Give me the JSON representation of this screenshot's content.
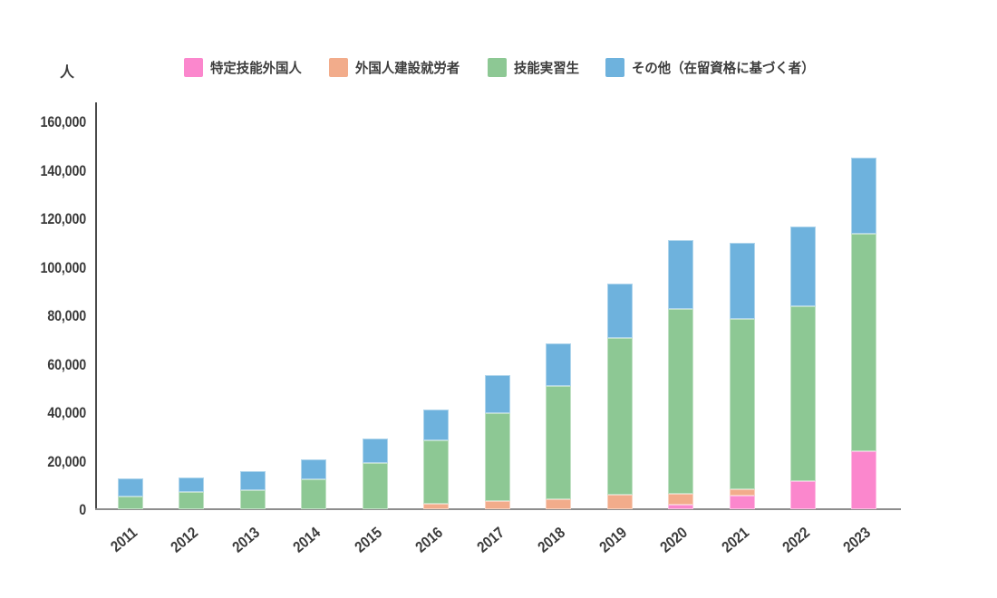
{
  "unit_label": "人",
  "colors": {
    "pink": "#FB87CD",
    "orange": "#F2AC8B",
    "green": "#8DC894",
    "blue": "#6EB2DD",
    "axis_line": "#4a4a4a",
    "baseline": "#8d8d8d",
    "text": "#3b3b3b"
  },
  "legend": [
    {
      "label": "特定技能外国人",
      "color": "#FB87CD"
    },
    {
      "label": "外国人建設就労者",
      "color": "#F2AC8B"
    },
    {
      "label": "技能実習生",
      "color": "#8DC894"
    },
    {
      "label": "その他（在留資格に基づく者）",
      "color": "#6EB2DD"
    }
  ],
  "chart_data": {
    "type": "bar",
    "stacked": true,
    "title": "",
    "xlabel": "",
    "ylabel": "人",
    "legend_position": "top",
    "grid": false,
    "ylim": [
      0,
      160000
    ],
    "ytick_labels": [
      "0",
      "20,000",
      "40,000",
      "60,000",
      "80,000",
      "100,000",
      "120,000",
      "140,000",
      "160,000"
    ],
    "ytick_values": [
      0,
      20000,
      40000,
      60000,
      80000,
      100000,
      120000,
      140000,
      160000
    ],
    "categories": [
      "2011",
      "2012",
      "2013",
      "2014",
      "2015",
      "2016",
      "2017",
      "2018",
      "2019",
      "2020",
      "2021",
      "2022",
      "2023"
    ],
    "series": [
      {
        "name": "特定技能外国人",
        "color": "#FB87CD",
        "values": [
          0,
          0,
          0,
          0,
          0,
          0,
          0,
          0,
          0,
          1800,
          5500,
          11500,
          23900
        ]
      },
      {
        "name": "外国人建設就労者",
        "color": "#F2AC8B",
        "values": [
          0,
          0,
          0,
          0,
          0,
          2100,
          3300,
          4200,
          5900,
          4500,
          2900,
          0,
          0
        ]
      },
      {
        "name": "技能実習生",
        "color": "#8DC894",
        "values": [
          5200,
          7000,
          7900,
          12300,
          19200,
          26400,
          36400,
          46600,
          64600,
          76300,
          70200,
          72400,
          89700
        ]
      },
      {
        "name": "その他（在留資格に基づく者）",
        "color": "#6EB2DD",
        "values": [
          7600,
          6100,
          7750,
          8250,
          9950,
          12600,
          15500,
          17800,
          22700,
          28300,
          31400,
          32900,
          31400
        ]
      }
    ],
    "totals": [
      12800,
      13100,
      15650,
      20550,
      29150,
      41100,
      55200,
      68600,
      93200,
      110900,
      110000,
      116800,
      145000
    ]
  }
}
